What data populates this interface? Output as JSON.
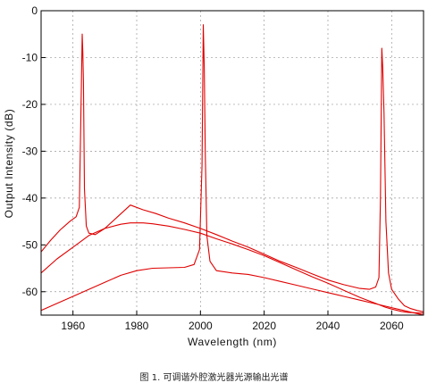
{
  "chart_data": {
    "type": "line",
    "title": "",
    "xlabel": "Wavelength (nm)",
    "ylabel": "Output Intensity (dB)",
    "xlim": [
      1950,
      2070
    ],
    "ylim": [
      -65,
      0
    ],
    "x_ticks": [
      1960,
      1980,
      2000,
      2020,
      2040,
      2060
    ],
    "y_ticks": [
      0,
      -10,
      -20,
      -30,
      -40,
      -50,
      -60
    ],
    "grid": "dashed",
    "legend": "none",
    "line_color": "#e00000",
    "series": [
      {
        "x": [
          1950,
          1953,
          1956,
          1959,
          1961,
          1962,
          1962.6,
          1962.9,
          1963.1,
          1963.3,
          1963.6,
          1964.2,
          1965,
          1967,
          1970,
          1974,
          1978,
          1982,
          1986,
          1990,
          1995,
          2000,
          2005,
          2010,
          2015,
          2020,
          2025,
          2030,
          2035,
          2040,
          2045,
          2050,
          2053,
          2055,
          2056,
          2056.5,
          2056.9,
          2057.2,
          2057.6,
          2058.2,
          2059,
          2060,
          2062,
          2064,
          2066,
          2068,
          2070
        ],
        "y": [
          -51.5,
          -49,
          -46.8,
          -45,
          -44,
          -42,
          -18,
          -5,
          -9,
          -15,
          -38,
          -46,
          -47.5,
          -47.8,
          -46.5,
          -44,
          -41.5,
          -42.5,
          -43.3,
          -44.3,
          -45.3,
          -46.5,
          -47.8,
          -49.2,
          -50.5,
          -52,
          -53.5,
          -54.8,
          -56.2,
          -57.5,
          -58.5,
          -59.3,
          -59.5,
          -59,
          -57,
          -40,
          -8,
          -12,
          -22,
          -45,
          -56,
          -59.5,
          -61.5,
          -63,
          -63.6,
          -64,
          -64.3
        ]
      },
      {
        "x": [
          1950,
          1955,
          1960,
          1963,
          1965,
          1970,
          1975,
          1978,
          1982,
          1985,
          1990,
          1995,
          2000,
          2005,
          2010,
          2015,
          2020,
          2025,
          2030,
          2035,
          2040,
          2045,
          2050,
          2055,
          2058,
          2060,
          2063,
          2065,
          2068,
          2070
        ],
        "y": [
          -56,
          -53,
          -50.5,
          -49,
          -48,
          -46.5,
          -45.6,
          -45.3,
          -45.3,
          -45.5,
          -46,
          -46.7,
          -47.5,
          -48.7,
          -49.8,
          -51,
          -52.3,
          -53.8,
          -55.3,
          -56.8,
          -58.2,
          -59.7,
          -61.2,
          -62.5,
          -63.3,
          -63.7,
          -64.2,
          -64.4,
          -64.5,
          -64.6
        ]
      },
      {
        "x": [
          1950,
          1955,
          1960,
          1965,
          1970,
          1975,
          1980,
          1985,
          1990,
          1995,
          1998,
          1999.7,
          2000.5,
          2000.9,
          2001.2,
          2001.5,
          2002,
          2003,
          2005,
          2010,
          2015,
          2020,
          2025,
          2030,
          2035,
          2040,
          2045,
          2050,
          2055,
          2060,
          2065,
          2070
        ],
        "y": [
          -64,
          -62.5,
          -61,
          -59.5,
          -58,
          -56.5,
          -55.5,
          -55,
          -54.9,
          -54.8,
          -54.2,
          -51,
          -33,
          -3,
          -12,
          -30,
          -48,
          -53.5,
          -55.5,
          -56,
          -56.3,
          -57,
          -57.8,
          -58.6,
          -59.4,
          -60.2,
          -61,
          -61.8,
          -62.6,
          -63.4,
          -64.2,
          -65
        ]
      }
    ]
  },
  "caption": "图 1. 可调谐外腔激光器光源输出光谱"
}
